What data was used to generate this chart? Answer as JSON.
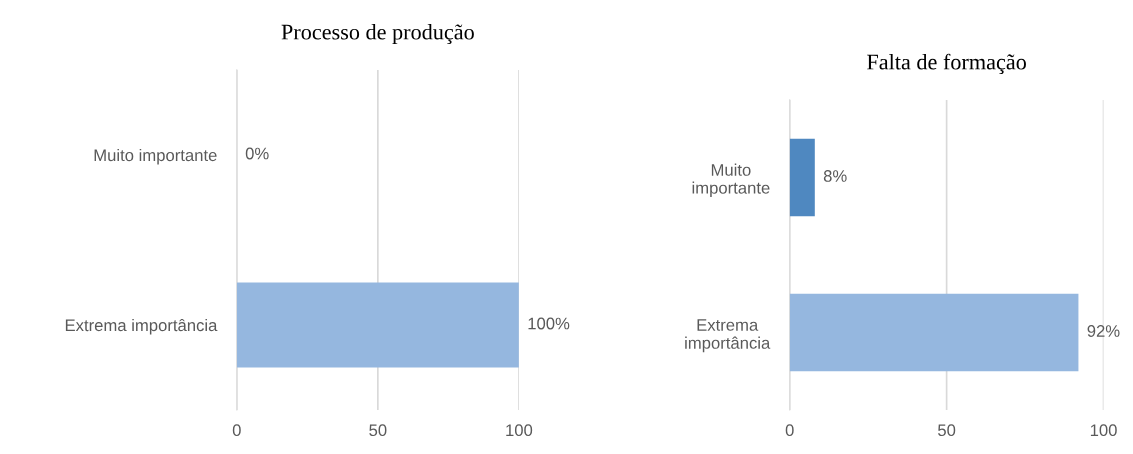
{
  "chart_data": [
    {
      "type": "bar",
      "orientation": "horizontal",
      "title": "Processo de produção",
      "categories": [
        "Muito importante",
        "Extrema importância"
      ],
      "values": [
        0,
        100
      ],
      "colors": [
        "#95b7df",
        "#95b7df"
      ],
      "value_labels": [
        "0%",
        "100%"
      ],
      "xlim": [
        0,
        100
      ],
      "xticks": [
        0,
        50,
        100
      ],
      "grid": "x"
    },
    {
      "type": "bar",
      "orientation": "horizontal",
      "title": "Falta de formação",
      "categories": [
        "Muito\nimportante",
        "Extrema\nimportância"
      ],
      "values": [
        8,
        92
      ],
      "colors": [
        "#4f88c0",
        "#95b7df"
      ],
      "value_labels": [
        "8%",
        "92%"
      ],
      "xlim": [
        0,
        100
      ],
      "xticks": [
        0,
        50,
        100
      ],
      "grid": "x"
    }
  ]
}
